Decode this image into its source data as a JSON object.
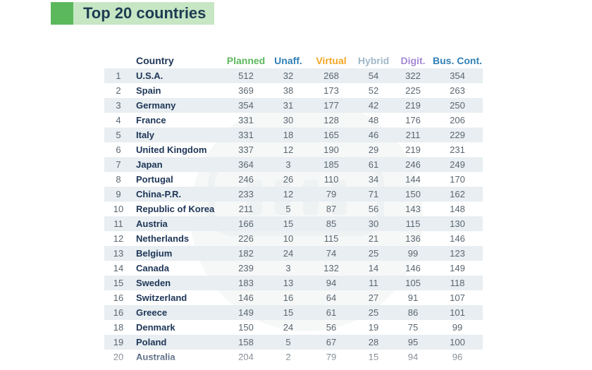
{
  "title": "Top 20 countries",
  "colors": {
    "accent_green": "#5cb85c",
    "title_bg": "#c7e6c4",
    "planned": "#5cb85c",
    "unaffiliated": "#2f7fb6",
    "virtual": "#f5a623",
    "hybrid": "#9fb7c8",
    "digital": "#a487d6",
    "business_continuity": "#2f7fb6",
    "row_stripe": "#e8eef1"
  },
  "columns": {
    "country": "Country",
    "planned": "Planned",
    "unaff": "Unaff.",
    "virtual": "Virtual",
    "hybrid": "Hybrid",
    "digit": "Digit.",
    "bus": "Bus. Cont."
  },
  "rows": [
    {
      "rank": "1",
      "country": "U.S.A.",
      "planned": "512",
      "unaff": "32",
      "virtual": "268",
      "hybrid": "54",
      "digit": "322",
      "bus": "354"
    },
    {
      "rank": "2",
      "country": "Spain",
      "planned": "369",
      "unaff": "38",
      "virtual": "173",
      "hybrid": "52",
      "digit": "225",
      "bus": "263"
    },
    {
      "rank": "3",
      "country": "Germany",
      "planned": "354",
      "unaff": "31",
      "virtual": "177",
      "hybrid": "42",
      "digit": "219",
      "bus": "250"
    },
    {
      "rank": "4",
      "country": "France",
      "planned": "331",
      "unaff": "30",
      "virtual": "128",
      "hybrid": "48",
      "digit": "176",
      "bus": "206"
    },
    {
      "rank": "5",
      "country": "Italy",
      "planned": "331",
      "unaff": "18",
      "virtual": "165",
      "hybrid": "46",
      "digit": "211",
      "bus": "229"
    },
    {
      "rank": "6",
      "country": "United Kingdom",
      "planned": "337",
      "unaff": "12",
      "virtual": "190",
      "hybrid": "29",
      "digit": "219",
      "bus": "231"
    },
    {
      "rank": "7",
      "country": "Japan",
      "planned": "364",
      "unaff": "3",
      "virtual": "185",
      "hybrid": "61",
      "digit": "246",
      "bus": "249"
    },
    {
      "rank": "8",
      "country": "Portugal",
      "planned": "246",
      "unaff": "26",
      "virtual": "110",
      "hybrid": "34",
      "digit": "144",
      "bus": "170"
    },
    {
      "rank": "9",
      "country": "China-P.R.",
      "planned": "233",
      "unaff": "12",
      "virtual": "79",
      "hybrid": "71",
      "digit": "150",
      "bus": "162"
    },
    {
      "rank": "10",
      "country": "Republic of Korea",
      "planned": "211",
      "unaff": "5",
      "virtual": "87",
      "hybrid": "56",
      "digit": "143",
      "bus": "148"
    },
    {
      "rank": "11",
      "country": "Austria",
      "planned": "166",
      "unaff": "15",
      "virtual": "85",
      "hybrid": "30",
      "digit": "115",
      "bus": "130"
    },
    {
      "rank": "12",
      "country": "Netherlands",
      "planned": "226",
      "unaff": "10",
      "virtual": "115",
      "hybrid": "21",
      "digit": "136",
      "bus": "146"
    },
    {
      "rank": "13",
      "country": "Belgium",
      "planned": "182",
      "unaff": "24",
      "virtual": "74",
      "hybrid": "25",
      "digit": "99",
      "bus": "123"
    },
    {
      "rank": "14",
      "country": "Canada",
      "planned": "239",
      "unaff": "3",
      "virtual": "132",
      "hybrid": "14",
      "digit": "146",
      "bus": "149"
    },
    {
      "rank": "15",
      "country": "Sweden",
      "planned": "183",
      "unaff": "13",
      "virtual": "94",
      "hybrid": "11",
      "digit": "105",
      "bus": "118"
    },
    {
      "rank": "16",
      "country": "Switzerland",
      "planned": "146",
      "unaff": "16",
      "virtual": "64",
      "hybrid": "27",
      "digit": "91",
      "bus": "107"
    },
    {
      "rank": "16",
      "country": "Greece",
      "planned": "149",
      "unaff": "15",
      "virtual": "61",
      "hybrid": "25",
      "digit": "86",
      "bus": "101"
    },
    {
      "rank": "18",
      "country": "Denmark",
      "planned": "150",
      "unaff": "24",
      "virtual": "56",
      "hybrid": "19",
      "digit": "75",
      "bus": "99"
    },
    {
      "rank": "19",
      "country": "Poland",
      "planned": "158",
      "unaff": "5",
      "virtual": "67",
      "hybrid": "28",
      "digit": "95",
      "bus": "100"
    },
    {
      "rank": "20",
      "country": "Australia",
      "planned": "204",
      "unaff": "2",
      "virtual": "79",
      "hybrid": "15",
      "digit": "94",
      "bus": "96"
    }
  ]
}
